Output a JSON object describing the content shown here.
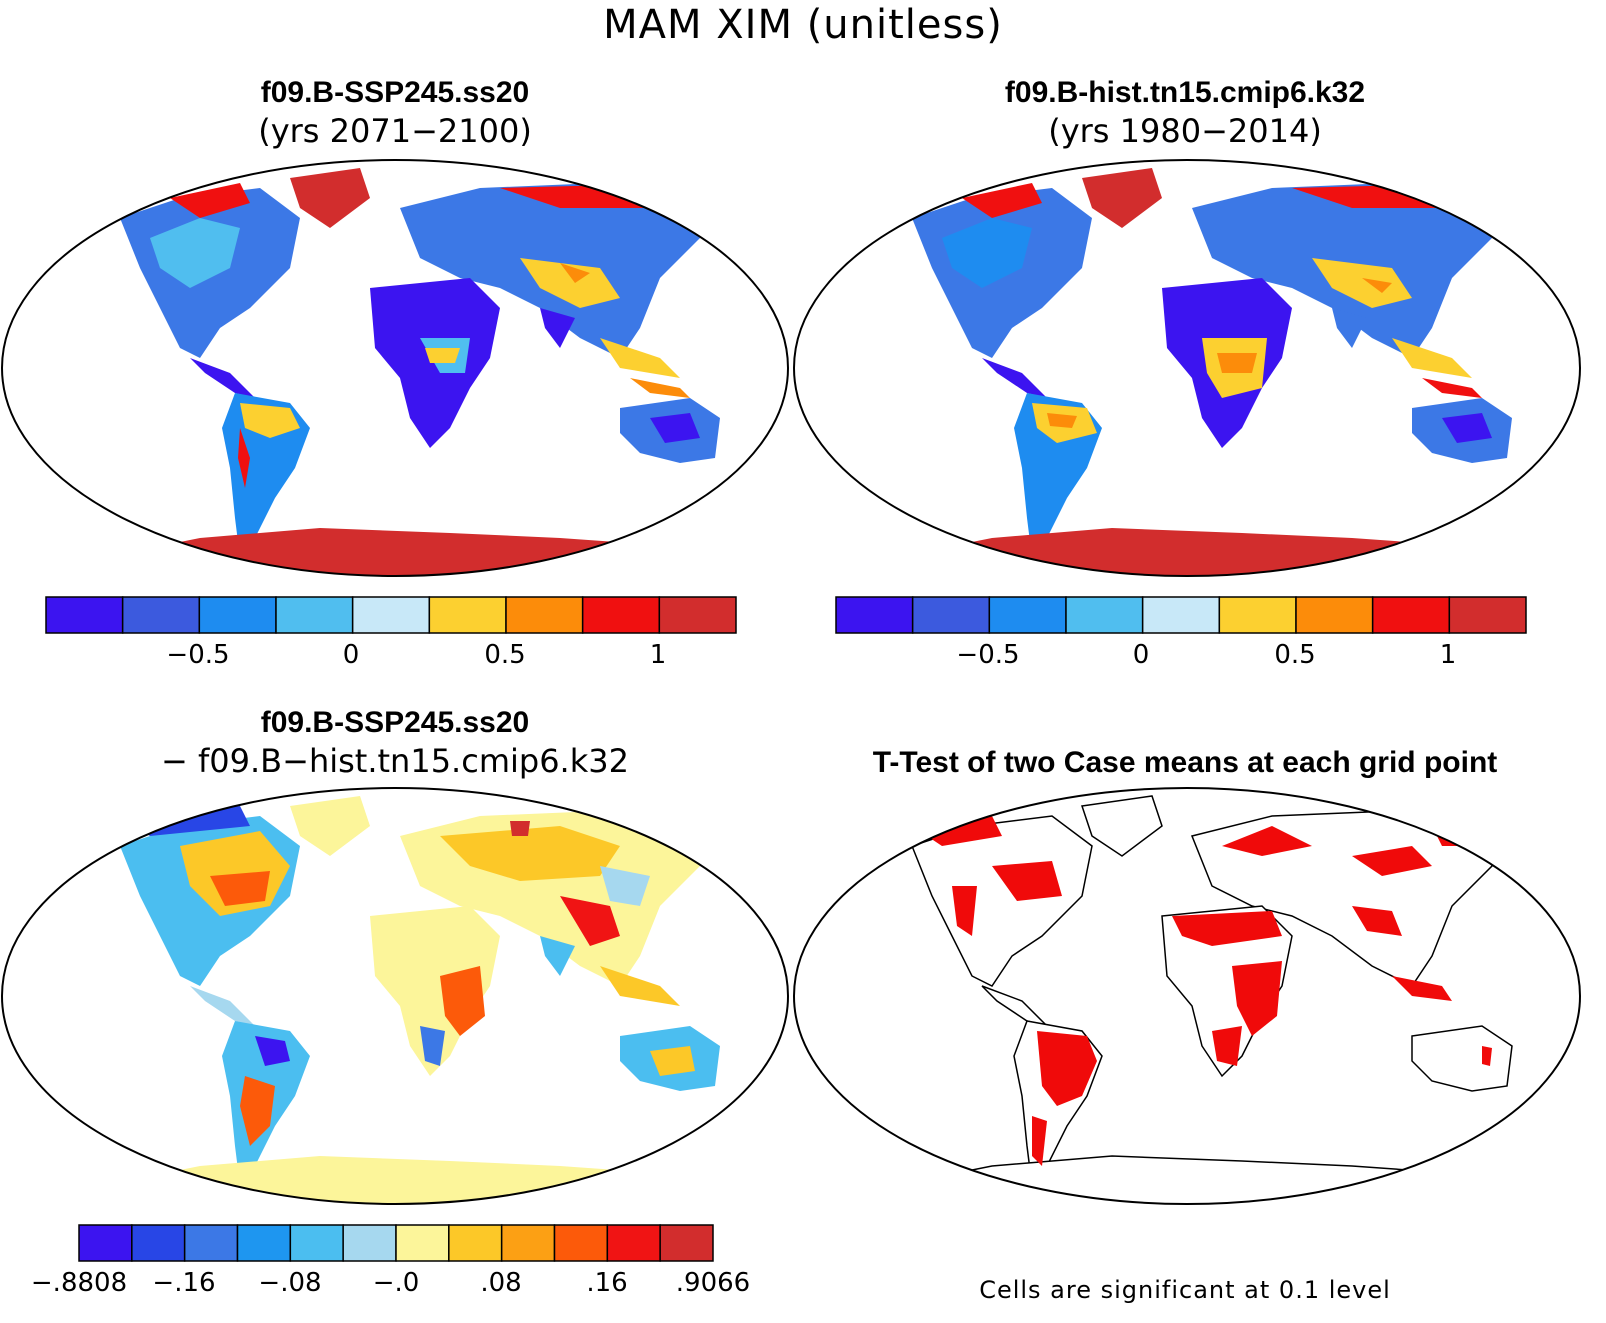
{
  "figure": {
    "title": "MAM XIM (unitless)"
  },
  "panels": {
    "top_left": {
      "title": "f09.B-SSP245.ss20",
      "subtitle": "(yrs 2071−2100)"
    },
    "top_right": {
      "title": "f09.B-hist.tn15.cmip6.k32",
      "subtitle": "(yrs 1980−2014)"
    },
    "bottom_left": {
      "title": "f09.B-SSP245.ss20",
      "subtitle": "− f09.B−hist.tn15.cmip6.k32"
    },
    "bottom_right": {
      "title": "T-Test of two Case means at each grid point",
      "footnote": "Cells are significant at 0.1 level"
    }
  },
  "colorbars": {
    "abs": {
      "colors": [
        "#3c14f0",
        "#3c5ade",
        "#1e8cf0",
        "#50beef",
        "#c8e8f8",
        "#fcd030",
        "#fc8c0a",
        "#f01010",
        "#d22d2d"
      ],
      "tick_labels": [
        "−0.5",
        "0",
        "0.5",
        "1"
      ]
    },
    "diff": {
      "colors": [
        "#3c14f0",
        "#2846e6",
        "#3c78e6",
        "#1e96f0",
        "#4bbef0",
        "#a6d8ef",
        "#fcf59a",
        "#fcc828",
        "#fca014",
        "#fc5a0a",
        "#f01414",
        "#d22d2d"
      ],
      "tick_labels": [
        "−.8808",
        "−.16",
        "−.08",
        "−.0",
        ".08",
        ".16",
        ".9066"
      ]
    }
  }
}
